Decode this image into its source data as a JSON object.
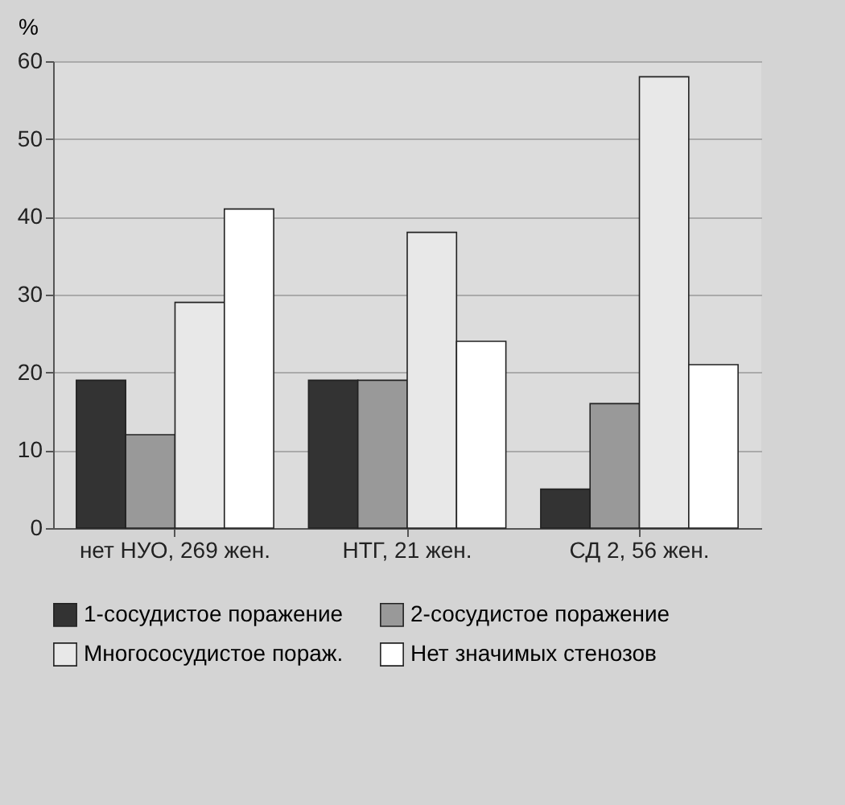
{
  "chart_data": {
    "type": "bar",
    "ylabel": "%",
    "categories": [
      "нет НУО, 269 жен.",
      "НТГ, 21 жен.",
      "СД 2, 56 жен."
    ],
    "series": [
      {
        "name": "1-сосудистое поражение",
        "color": "#333333",
        "values": [
          19,
          19,
          5
        ]
      },
      {
        "name": "2-сосудистое поражение",
        "color": "#999999",
        "values": [
          12,
          19,
          16
        ]
      },
      {
        "name": "Многососудистое пораж.",
        "color": "#e8e8e8",
        "values": [
          29,
          38,
          58
        ]
      },
      {
        "name": "Нет значимых стенозов",
        "color": "#ffffff",
        "values": [
          41,
          24,
          21
        ]
      }
    ],
    "ylim": [
      0,
      60
    ],
    "yticks": [
      0,
      10,
      20,
      30,
      40,
      50,
      60
    ],
    "grid": "y",
    "legend": "bottom"
  }
}
